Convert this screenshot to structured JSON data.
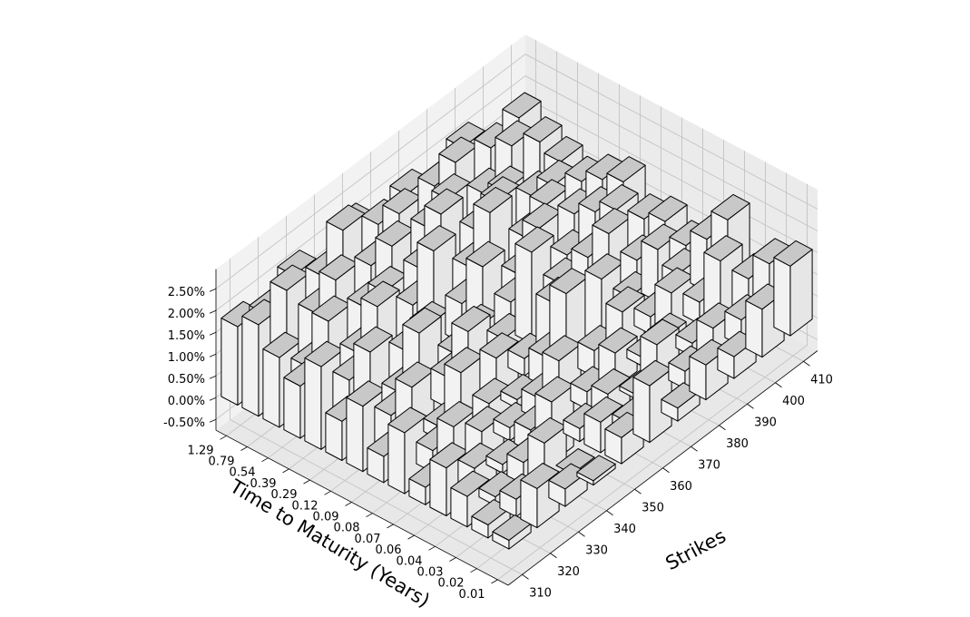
{
  "chart_data": {
    "type": "bar3d",
    "xlabel": "Strikes",
    "ylabel": "Time to Maturity (Years)",
    "zlabel": "",
    "x_ticks": [
      "310",
      "320",
      "330",
      "340",
      "350",
      "360",
      "370",
      "380",
      "390",
      "400",
      "410"
    ],
    "y_ticks": [
      "0.01",
      "0.02",
      "0.03",
      "0.04",
      "0.06",
      "0.07",
      "0.08",
      "0.09",
      "0.12",
      "0.29",
      "0.39",
      "0.54",
      "0.79",
      "1.29"
    ],
    "z_ticks": [
      "-0.50%",
      "0.00%",
      "0.50%",
      "1.00%",
      "1.50%",
      "2.00%",
      "2.50%"
    ],
    "z_range": [
      -0.75,
      2.95
    ],
    "grid": true,
    "legend": "none",
    "bar_face_color": "#e6e6e6",
    "bar_top_color": "#c8c8c8",
    "bar_edge_color": "#000000",
    "values_pct": [
      [
        0.2,
        0.9,
        0.4,
        0.1,
        0.6,
        1.3,
        0.3,
        0.8,
        0.5,
        1.1,
        1.6
      ],
      [
        0.3,
        0.4,
        1.2,
        0.0,
        0.7,
        0.2,
        1.5,
        0.4,
        0.9,
        0.6,
        1.4
      ],
      [
        0.7,
        0.2,
        0.5,
        1.4,
        0.3,
        0.6,
        0.1,
        0.9,
        0.3,
        1.7,
        0.8
      ],
      [
        1.1,
        0.6,
        0.2,
        0.5,
        1.6,
        0.4,
        0.8,
        0.2,
        1.2,
        0.5,
        1.9
      ],
      [
        0.4,
        1.3,
        0.7,
        0.3,
        0.5,
        2.4,
        0.6,
        1.0,
        0.4,
        0.9,
        1.2
      ],
      [
        1.4,
        0.5,
        1.8,
        0.6,
        0.2,
        0.7,
        0.9,
        1.5,
        0.6,
        1.2,
        0.8
      ],
      [
        0.6,
        1.7,
        0.3,
        2.0,
        0.9,
        0.4,
        1.2,
        0.5,
        1.8,
        0.7,
        1.1
      ],
      [
        1.5,
        0.8,
        2.2,
        0.7,
        1.3,
        0.6,
        2.1,
        0.9,
        1.0,
        1.6,
        0.9
      ],
      [
        0.9,
        2.0,
        0.6,
        1.6,
        0.5,
        2.0,
        0.7,
        1.9,
        0.8,
        1.3,
        1.5
      ],
      [
        1.9,
        1.1,
        2.3,
        0.8,
        2.6,
        0.9,
        2.5,
        0.6,
        1.7,
        1.0,
        1.3
      ],
      [
        1.2,
        2.2,
        1.0,
        1.9,
        1.1,
        2.7,
        1.0,
        2.0,
        0.7,
        1.4,
        1.0
      ],
      [
        1.6,
        0.9,
        2.4,
        1.3,
        2.2,
        1.2,
        2.3,
        1.1,
        1.5,
        0.9,
        1.2
      ],
      [
        2.1,
        2.4,
        1.4,
        2.8,
        1.5,
        2.2,
        1.4,
        2.4,
        1.2,
        1.8,
        1.4
      ],
      [
        1.8,
        1.6,
        2.0,
        1.5,
        2.1,
        1.7,
        1.9,
        1.6,
        2.0,
        1.5,
        1.7
      ]
    ]
  }
}
